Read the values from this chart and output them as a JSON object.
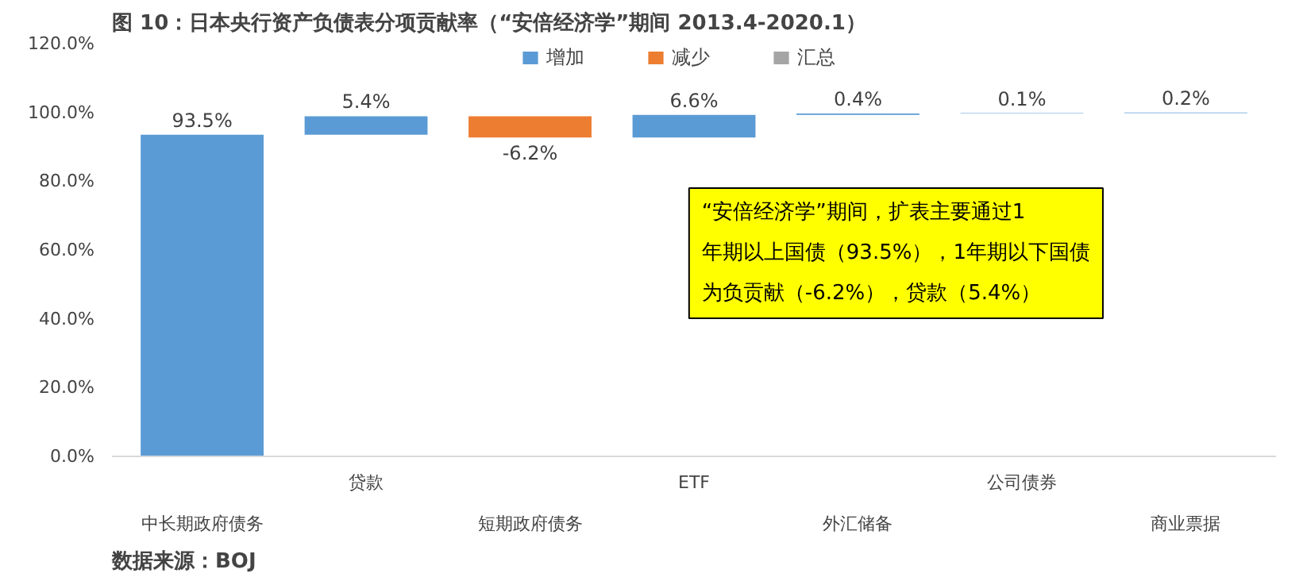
{
  "chart_data": {
    "type": "bar",
    "title": "图 10：日本央行资产负债表分项贡献率（“安倍经济学”期间 2013.4-2020.1）",
    "categories": [
      "中长期政府债务",
      "贷款",
      "短期政府债务",
      "ETF",
      "外汇储备",
      "公司债券",
      "商业票据"
    ],
    "series": [
      {
        "name": "增加",
        "color": "#5b9bd5",
        "base": [
          0,
          93.5,
          null,
          92.7,
          99.3,
          99.7,
          99.8
        ],
        "values": [
          93.5,
          5.4,
          null,
          6.6,
          0.4,
          0.1,
          0.2
        ],
        "value_labels": [
          "93.5%",
          "5.4%",
          null,
          "6.6%",
          "0.4%",
          "0.1%",
          "0.2%"
        ]
      },
      {
        "name": "减少",
        "color": "#ed7d31",
        "base": [
          null,
          null,
          98.9,
          null,
          null,
          null,
          null
        ],
        "values": [
          null,
          null,
          -6.2,
          null,
          null,
          null,
          null
        ],
        "value_labels": [
          null,
          null,
          "-6.2%",
          null,
          null,
          null,
          null
        ]
      },
      {
        "name": "汇总",
        "color": "#a5a5a5",
        "values": [
          null,
          null,
          null,
          null,
          null,
          null,
          null
        ]
      }
    ],
    "ylim": [
      0,
      120
    ],
    "yticks": [
      {
        "value": 0,
        "label": "0.0%"
      },
      {
        "value": 20,
        "label": "20.0%"
      },
      {
        "value": 40,
        "label": "40.0%"
      },
      {
        "value": 60,
        "label": "60.0%"
      },
      {
        "value": 80,
        "label": "80.0%"
      },
      {
        "value": 100,
        "label": "100.0%"
      },
      {
        "value": 120,
        "label": "120.0%"
      }
    ],
    "legend": "top",
    "annotations": [
      "“安倍经济学”期间，扩表主要通过1年期以上国债（93.5%），1年期以下国债为负贡献（-6.2%），贷款（5.4%）",
      "数据来源：BOJ"
    ]
  }
}
